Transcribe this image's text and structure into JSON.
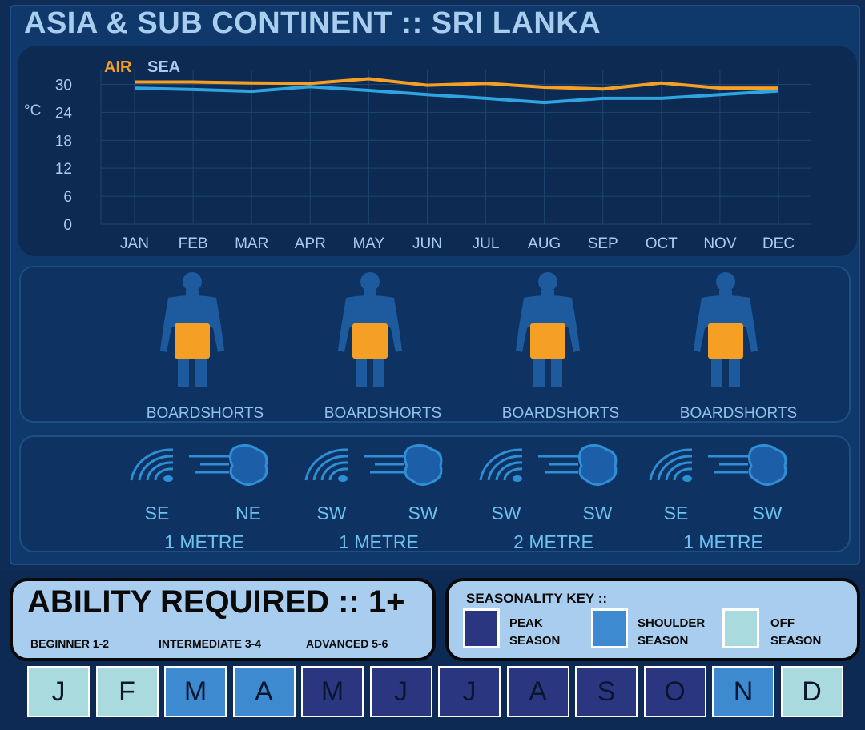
{
  "title": "ASIA & SUB CONTINENT :: SRI LANKA",
  "colors": {
    "air": "#f5a025",
    "sea": "#2fa4e0",
    "peak": "#2b3680",
    "shoulder": "#3d8ad0",
    "off": "#a9dbde"
  },
  "chart_data": {
    "type": "line",
    "unit_label": "°C",
    "categories": [
      "JAN",
      "FEB",
      "MAR",
      "APR",
      "MAY",
      "JUN",
      "JUL",
      "AUG",
      "SEP",
      "OCT",
      "NOV",
      "DEC"
    ],
    "y_ticks": [
      "0",
      "6",
      "12",
      "18",
      "24",
      "30"
    ],
    "ylim": [
      0,
      33
    ],
    "grid": true,
    "legend_position": "top-left",
    "series": [
      {
        "name": "AIR",
        "values": [
          30.5,
          30.5,
          30.3,
          30.2,
          31.2,
          29.8,
          30.2,
          29.4,
          29.0,
          30.3,
          29.2,
          29.2
        ]
      },
      {
        "name": "SEA",
        "values": [
          29.2,
          28.9,
          28.5,
          29.5,
          28.7,
          27.8,
          27.0,
          26.1,
          27.0,
          27.0,
          27.8,
          28.6
        ]
      }
    ]
  },
  "gear": [
    {
      "icon": "boardshorts-figure-icon",
      "label": "BOARDSHORTS"
    },
    {
      "icon": "boardshorts-figure-icon",
      "label": "BOARDSHORTS"
    },
    {
      "icon": "boardshorts-figure-icon",
      "label": "BOARDSHORTS"
    },
    {
      "icon": "boardshorts-figure-icon",
      "label": "BOARDSHORTS"
    }
  ],
  "conditions": [
    {
      "swell_dir": "SE",
      "wind_dir": "NE",
      "size": "1 METRE"
    },
    {
      "swell_dir": "SW",
      "wind_dir": "SW",
      "size": "1 METRE"
    },
    {
      "swell_dir": "SW",
      "wind_dir": "SW",
      "size": "2 METRE"
    },
    {
      "swell_dir": "SE",
      "wind_dir": "SW",
      "size": "1 METRE"
    }
  ],
  "ability": {
    "title": "ABILITY REQUIRED :: 1+",
    "levels": [
      "BEGINNER 1-2",
      "INTERMEDIATE 3-4",
      "ADVANCED 5-6"
    ]
  },
  "season_key": {
    "title": "SEASONALITY KEY ::",
    "peak_line1": "PEAK",
    "peak_line2": "SEASON",
    "shoulder_line1": "SHOULDER",
    "shoulder_line2": "SEASON",
    "off_line1": "OFF",
    "off_line2": "SEASON"
  },
  "months": [
    {
      "letter": "J",
      "season": "off"
    },
    {
      "letter": "F",
      "season": "off"
    },
    {
      "letter": "M",
      "season": "shoulder"
    },
    {
      "letter": "A",
      "season": "shoulder"
    },
    {
      "letter": "M",
      "season": "peak"
    },
    {
      "letter": "J",
      "season": "peak"
    },
    {
      "letter": "J",
      "season": "peak"
    },
    {
      "letter": "A",
      "season": "peak"
    },
    {
      "letter": "S",
      "season": "peak"
    },
    {
      "letter": "O",
      "season": "peak"
    },
    {
      "letter": "N",
      "season": "shoulder"
    },
    {
      "letter": "D",
      "season": "off"
    }
  ]
}
